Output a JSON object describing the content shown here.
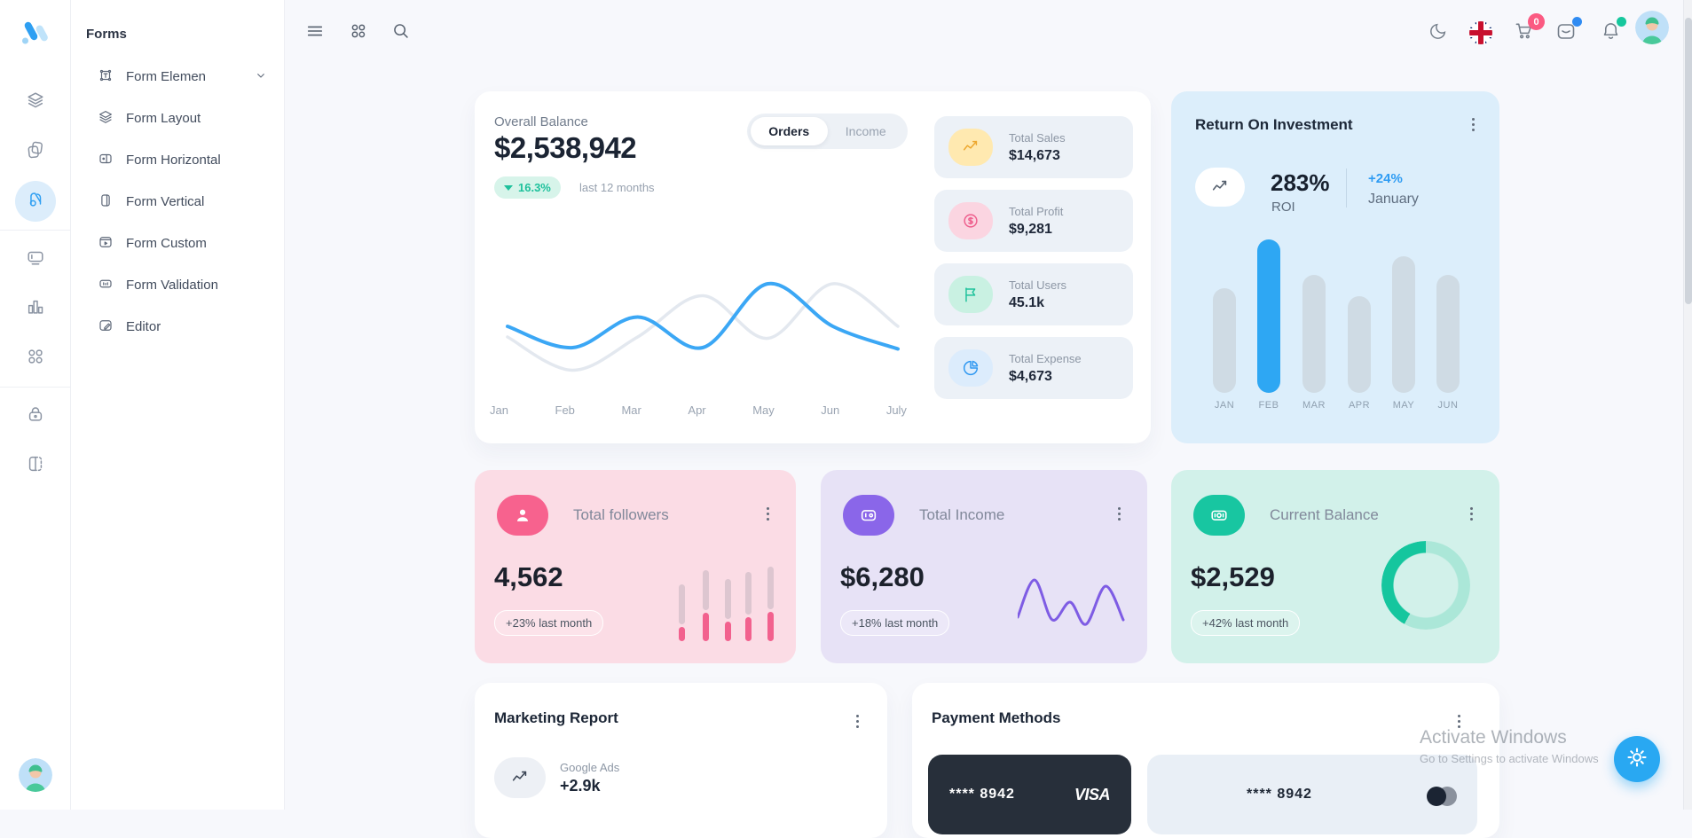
{
  "rail": {
    "items": [
      {
        "icon": "layers-icon",
        "active": false
      },
      {
        "icon": "copy-icon",
        "active": false
      },
      {
        "icon": "forms-icon",
        "active": true
      },
      {
        "icon": "input-icon",
        "active": false
      },
      {
        "icon": "bar-chart-icon",
        "active": false
      },
      {
        "icon": "apps-icon",
        "active": false
      },
      {
        "icon": "lock-icon",
        "active": false
      },
      {
        "icon": "book-icon",
        "active": false
      }
    ],
    "dividers_after": [
      2,
      5
    ]
  },
  "sidebar": {
    "title": "Forms",
    "items": [
      {
        "label": "Form Elemen",
        "icon": "form-elements-icon",
        "chevron": true
      },
      {
        "label": "Form Layout",
        "icon": "layers-icon",
        "chevron": false
      },
      {
        "label": "Form Horizontal",
        "icon": "form-horizontal-icon",
        "chevron": false
      },
      {
        "label": "Form Vertical",
        "icon": "form-vertical-icon",
        "chevron": false
      },
      {
        "label": "Form Custom",
        "icon": "form-custom-icon",
        "chevron": false
      },
      {
        "label": "Form Validation",
        "icon": "form-validation-icon",
        "chevron": false
      },
      {
        "label": "Editor",
        "icon": "editor-icon",
        "chevron": false
      }
    ]
  },
  "header": {
    "cart_badge": "0"
  },
  "overall_balance": {
    "title": "Overall Balance",
    "value": "$2,538,942",
    "change": "16.3%",
    "change_direction": "down",
    "period": "last 12 months",
    "tabs": {
      "orders": "Orders",
      "income": "Income",
      "active": "Orders"
    },
    "chart_data": {
      "type": "line",
      "x": [
        "Jan",
        "Feb",
        "Mar",
        "Apr",
        "May",
        "Jun",
        "July"
      ],
      "series": [
        {
          "name": "Orders",
          "color": "#3ba7f5",
          "values": [
            40,
            24,
            47,
            24,
            72,
            40,
            23
          ]
        },
        {
          "name": "Baseline",
          "color": "#e3e8ef",
          "values": [
            32,
            7,
            32,
            63,
            31,
            72,
            40
          ]
        }
      ],
      "ylim": [
        0,
        100
      ],
      "grid": false,
      "legend": "none"
    },
    "stats": [
      {
        "label": "Total Sales",
        "value": "$14,673",
        "icon": "trend-up-icon",
        "icon_bg": "#ffe9b0",
        "icon_color": "#eda72e"
      },
      {
        "label": "Total Profit",
        "value": "$9,281",
        "icon": "dollar-icon",
        "icon_bg": "#fbd5e1",
        "icon_color": "#ee5f8d"
      },
      {
        "label": "Total Users",
        "value": "45.1k",
        "icon": "flag-icon",
        "icon_bg": "#c9f1e2",
        "icon_color": "#1fc29c"
      },
      {
        "label": "Total Expense",
        "value": "$4,673",
        "icon": "pie-icon",
        "icon_bg": "#dcecfc",
        "icon_color": "#2f98f1"
      }
    ]
  },
  "roi": {
    "title": "Return On Investment",
    "value": "283%",
    "value_label": "ROI",
    "change": "+24%",
    "change_period": "January",
    "chart_data": {
      "type": "bar",
      "categories": [
        "JAN",
        "FEB",
        "MAR",
        "APR",
        "MAY",
        "JUN"
      ],
      "values": [
        68,
        100,
        77,
        63,
        89,
        77
      ],
      "unit": "relative height, FEB = 100",
      "highlight_index": 1,
      "bar_color": "#cfdbe4",
      "highlight_color": "#2ea7f3"
    }
  },
  "kpi_cards": [
    {
      "title": "Total followers",
      "value": "4,562",
      "badge": "+23% last month",
      "icon": "user-icon",
      "icon_bg": "#f7628e",
      "card_bg": "#fbdce5",
      "chart_data": {
        "type": "stacked-bar",
        "pairs_gray_pink": [
          [
            45,
            16
          ],
          [
            45,
            32
          ],
          [
            45,
            22
          ],
          [
            48,
            27
          ],
          [
            48,
            33
          ]
        ],
        "top_color": "#ddc6d0",
        "bottom_color": "#f2618e"
      }
    },
    {
      "title": "Total Income",
      "value": "$6,280",
      "badge": "+18% last month",
      "icon": "wallet-icon",
      "icon_bg": "#8a66e9",
      "card_bg": "#e7e2f6",
      "chart_data": {
        "type": "line",
        "color": "#7e5ce4",
        "points": [
          [
            0,
            50
          ],
          [
            19,
            8
          ],
          [
            39,
            53
          ],
          [
            59,
            33
          ],
          [
            77,
            58
          ],
          [
            99,
            15
          ],
          [
            119,
            53
          ]
        ]
      }
    },
    {
      "title": "Current Balance",
      "value": "$2,529",
      "badge": "+42% last month",
      "icon": "cash-icon",
      "icon_bg": "#18c6a1",
      "card_bg": "#d2f1ea",
      "chart_data": {
        "type": "donut",
        "segments": [
          {
            "color": "#abe7d8",
            "from_deg": 0,
            "to_deg": 209
          },
          {
            "color": "#15c69e",
            "from_deg": 209,
            "to_deg": 360
          }
        ]
      }
    }
  ],
  "marketing": {
    "title": "Marketing Report",
    "items": [
      {
        "label": "Google Ads",
        "value": "+2.9k",
        "icon": "trend-up-icon"
      }
    ]
  },
  "payments": {
    "title": "Payment Methods",
    "cards": [
      {
        "number": "**** 8942",
        "brand": "VISA",
        "variant": "dark"
      },
      {
        "number": "**** 8942",
        "variant": "light",
        "has_toggle": true
      }
    ]
  },
  "watermark": {
    "line1": "Activate Windows",
    "line2": "Go to Settings to activate Windows"
  }
}
